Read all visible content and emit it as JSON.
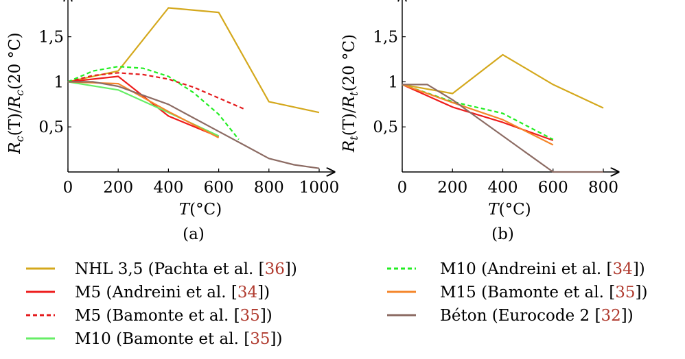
{
  "chart_data": [
    {
      "panel_label": "(a)",
      "type": "line",
      "xlabel": "T(°C)",
      "ylabel": "Rc(T)/Rc(20 °C)",
      "xlim": [
        0,
        1000
      ],
      "ylim": [
        0,
        1.9
      ],
      "xticks": [
        "0",
        "200",
        "400",
        "600",
        "800",
        "1000"
      ],
      "yticks": [
        "0,5",
        "1",
        "1,5"
      ],
      "series": [
        {
          "name": "NHL 3,5 (Pachta et al. [36])",
          "x": [
            0,
            200,
            400,
            600,
            800,
            1000
          ],
          "y": [
            1.0,
            1.12,
            1.82,
            1.77,
            0.78,
            0.66
          ]
        },
        {
          "name": "M5 (Andreini et al. [34])",
          "x": [
            0,
            200,
            400,
            600
          ],
          "y": [
            1.0,
            1.06,
            0.62,
            0.39
          ]
        },
        {
          "name": "M5 (Bamonte et al. [35])",
          "x": [
            0,
            100,
            200,
            300,
            400,
            500,
            600,
            700
          ],
          "y": [
            1.0,
            1.07,
            1.1,
            1.08,
            1.03,
            0.94,
            0.82,
            0.7
          ]
        },
        {
          "name": "M10 (Bamonte et al. [35])",
          "x": [
            0,
            200,
            400,
            600
          ],
          "y": [
            1.0,
            0.91,
            0.66,
            0.4
          ]
        },
        {
          "name": "M10 (Andreini et al. [34])",
          "x": [
            0,
            100,
            200,
            300,
            400,
            500,
            600,
            680
          ],
          "y": [
            1.0,
            1.12,
            1.17,
            1.15,
            1.06,
            0.88,
            0.64,
            0.36
          ]
        },
        {
          "name": "M15 (Bamonte et al. [35])",
          "x": [
            0,
            200,
            400,
            600
          ],
          "y": [
            1.0,
            0.98,
            0.67,
            0.38
          ]
        },
        {
          "name": "Béton (Eurocode 2 [32])",
          "x": [
            0,
            100,
            200,
            300,
            400,
            500,
            600,
            700,
            800,
            900,
            1000
          ],
          "y": [
            1.0,
            1.0,
            0.95,
            0.85,
            0.75,
            0.6,
            0.45,
            0.3,
            0.15,
            0.08,
            0.04
          ]
        }
      ]
    },
    {
      "panel_label": "(b)",
      "type": "line",
      "xlabel": "T(°C)",
      "ylabel": "Rt(T)/Rt(20 °C)",
      "xlim": [
        0,
        800
      ],
      "ylim": [
        0,
        1.9
      ],
      "xticks": [
        "0",
        "200",
        "400",
        "600",
        "800"
      ],
      "yticks": [
        "0,5",
        "1",
        "1,5"
      ],
      "series": [
        {
          "name": "NHL 3,5 (Pachta et al. [36])",
          "x": [
            0,
            200,
            400,
            600,
            800
          ],
          "y": [
            0.97,
            0.87,
            1.3,
            0.97,
            0.71
          ]
        },
        {
          "name": "M5 (Andreini et al. [34])",
          "x": [
            0,
            200,
            400,
            600
          ],
          "y": [
            0.97,
            0.72,
            0.55,
            0.35
          ]
        },
        {
          "name": "M10 (Andreini et al. [34])",
          "x": [
            0,
            200,
            400,
            600
          ],
          "y": [
            0.97,
            0.78,
            0.65,
            0.36
          ]
        },
        {
          "name": "M15 (Bamonte et al. [35])",
          "x": [
            0,
            200,
            400,
            600
          ],
          "y": [
            0.97,
            0.77,
            0.58,
            0.3
          ]
        },
        {
          "name": "Béton (Eurocode 2 [32])",
          "x": [
            0,
            100,
            200,
            300,
            400,
            500,
            600,
            700,
            800
          ],
          "y": [
            0.97,
            0.97,
            0.8,
            0.6,
            0.4,
            0.2,
            0.0,
            0.0,
            0.0
          ]
        }
      ]
    }
  ],
  "legend": [
    {
      "series": "NHL 3,5",
      "source": "Pachta et al.",
      "ref": "36",
      "color": "#d4a81c",
      "dash": false
    },
    {
      "series": "M5",
      "source": "Andreini et al.",
      "ref": "34",
      "color": "#ee1c1c",
      "dash": false
    },
    {
      "series": "M5",
      "source": "Bamonte et al.",
      "ref": "35",
      "color": "#e41a1c",
      "dash": true
    },
    {
      "series": "M10",
      "source": "Bamonte et al.",
      "ref": "35",
      "color": "#66ee66",
      "dash": false
    },
    {
      "series": "M10",
      "source": "Andreini et al.",
      "ref": "34",
      "color": "#22ee22",
      "dash": true
    },
    {
      "series": "M15",
      "source": "Bamonte et al.",
      "ref": "35",
      "color": "#f4862a",
      "dash": false
    },
    {
      "series": "Béton",
      "source": "Eurocode 2",
      "ref": "32",
      "color": "#8c6b63",
      "dash": false
    }
  ],
  "series_colors": {
    "NHL 3,5 (Pachta et al. [36])": "#d4a81c",
    "M5 (Andreini et al. [34])": "#ee1c1c",
    "M5 (Bamonte et al. [35])": "#e41a1c",
    "M10 (Bamonte et al. [35])": "#66ee66",
    "M10 (Andreini et al. [34])": "#22ee22",
    "M15 (Bamonte et al. [35])": "#f4862a",
    "Béton (Eurocode 2 [32])": "#8c6b63"
  }
}
